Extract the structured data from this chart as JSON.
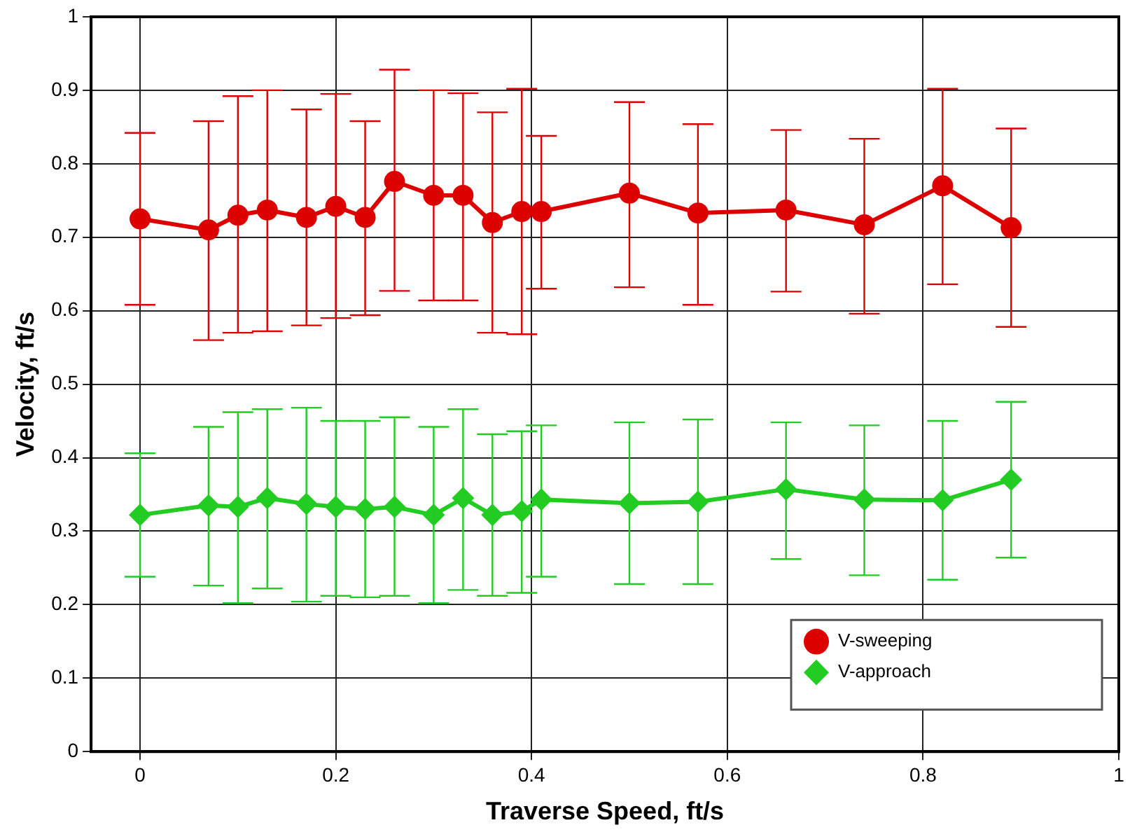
{
  "chart_data": {
    "type": "line",
    "xlabel": "Traverse Speed, ft/s",
    "ylabel": "Velocity, ft/s",
    "x": [
      0,
      0.07,
      0.1,
      0.13,
      0.17,
      0.2,
      0.23,
      0.26,
      0.3,
      0.33,
      0.36,
      0.39,
      0.41,
      0.5,
      0.57,
      0.66,
      0.74,
      0.82,
      0.89
    ],
    "series": [
      {
        "name": "V-sweeping",
        "color": "#dd0000",
        "marker": "circle",
        "values": [
          0.725,
          0.71,
          0.73,
          0.737,
          0.727,
          0.742,
          0.727,
          0.776,
          0.757,
          0.757,
          0.72,
          0.735,
          0.735,
          0.76,
          0.733,
          0.737,
          0.717,
          0.77,
          0.713
        ],
        "errors": [
          [
            0.608,
            0.842
          ],
          [
            0.56,
            0.858
          ],
          [
            0.57,
            0.892
          ],
          [
            0.572,
            0.9
          ],
          [
            0.58,
            0.874
          ],
          [
            0.59,
            0.895
          ],
          [
            0.594,
            0.858
          ],
          [
            0.627,
            0.928
          ],
          [
            0.614,
            0.9
          ],
          [
            0.614,
            0.896
          ],
          [
            0.57,
            0.87
          ],
          [
            0.568,
            0.902
          ],
          [
            0.63,
            0.838
          ],
          [
            0.632,
            0.884
          ],
          [
            0.608,
            0.854
          ],
          [
            0.626,
            0.846
          ],
          [
            0.596,
            0.834
          ],
          [
            0.636,
            0.902
          ],
          [
            0.578,
            0.848
          ]
        ]
      },
      {
        "name": "V-approach",
        "color": "#22cc22",
        "marker": "diamond",
        "values": [
          0.322,
          0.335,
          0.333,
          0.345,
          0.337,
          0.333,
          0.33,
          0.333,
          0.322,
          0.345,
          0.322,
          0.327,
          0.343,
          0.338,
          0.34,
          0.357,
          0.343,
          0.342,
          0.37
        ],
        "errors": [
          [
            0.238,
            0.406
          ],
          [
            0.226,
            0.442
          ],
          [
            0.202,
            0.462
          ],
          [
            0.222,
            0.466
          ],
          [
            0.204,
            0.468
          ],
          [
            0.212,
            0.45
          ],
          [
            0.21,
            0.45
          ],
          [
            0.212,
            0.455
          ],
          [
            0.202,
            0.442
          ],
          [
            0.22,
            0.466
          ],
          [
            0.212,
            0.432
          ],
          [
            0.216,
            0.436
          ],
          [
            0.238,
            0.444
          ],
          [
            0.228,
            0.448
          ],
          [
            0.228,
            0.452
          ],
          [
            0.262,
            0.448
          ],
          [
            0.24,
            0.444
          ],
          [
            0.234,
            0.45
          ],
          [
            0.264,
            0.476
          ]
        ]
      }
    ],
    "xlim": [
      -0.05,
      1
    ],
    "xticks": [
      0,
      0.2,
      0.4,
      0.6,
      0.8,
      1
    ],
    "ylim": [
      0,
      1
    ],
    "yticks": [
      0,
      0.1,
      0.2,
      0.3,
      0.4,
      0.5,
      0.6,
      0.7,
      0.8,
      0.9,
      1
    ],
    "grid": true,
    "legend": "bottom right"
  }
}
